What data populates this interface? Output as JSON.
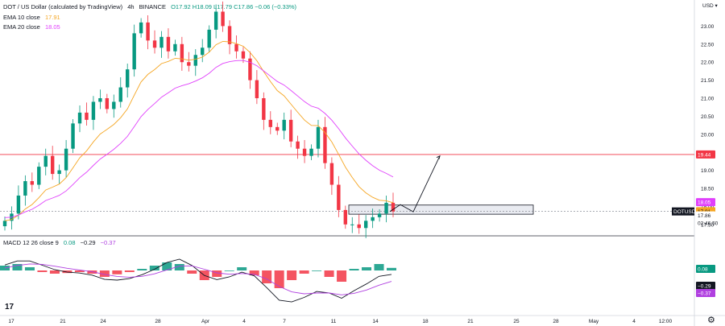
{
  "header": {
    "symbol": "DOT / US Dollar (calculated by TradingView)",
    "interval": "4h",
    "exchange": "BINANCE",
    "ohlc": "O17.92 H18.09 L17.79 C17.86 −0.06 (−0.33%)"
  },
  "indicators": {
    "ema10": {
      "label": "EMA 10 close",
      "value": "17.91",
      "color": "#f5a623"
    },
    "ema20": {
      "label": "EMA 20 close",
      "value": "18.05",
      "color": "#e040fb"
    },
    "macd": {
      "label": "MACD 12 26 close 9",
      "v1": "0.08",
      "v2": "−0.29",
      "v3": "−0.37"
    }
  },
  "currency": "USD",
  "price_axis": [
    "23.00",
    "22.50",
    "22.00",
    "21.50",
    "21.00",
    "20.50",
    "20.00",
    "19.50",
    "19.00",
    "18.50",
    "18.00",
    "17.50"
  ],
  "time_axis": [
    "17",
    "21",
    "24",
    "28",
    "Apr",
    "4",
    "7",
    "11",
    "14",
    "18",
    "21",
    "25",
    "28",
    "May",
    "4",
    "12:00"
  ],
  "tags": {
    "level": "19.44",
    "ema20": "18.05",
    "ema10": "17.91",
    "symbol_tag": "DOTUSD",
    "last_price": "17.86",
    "countdown": "02:46:50",
    "macd_hist": "0.08",
    "macd_line": "−0.29",
    "signal_line": "−0.37"
  },
  "colors": {
    "up": "#089981",
    "down": "#f23645",
    "ema10": "#f5a623",
    "ema20": "#e040fb",
    "level": "#f23645",
    "macd": "#131722",
    "signal": "#b040e0"
  },
  "chart_data": [
    {
      "type": "candlestick",
      "title": "DOT / US Dollar",
      "interval": "4h",
      "y_range": [
        17.25,
        23.5
      ],
      "x_range": [
        "Mar 17",
        "May 4"
      ],
      "ohlc_close_series_approx": [
        17.6,
        17.8,
        18.3,
        18.7,
        18.6,
        19.1,
        19.4,
        18.9,
        19.0,
        19.6,
        20.3,
        20.6,
        20.4,
        20.9,
        21.0,
        20.7,
        20.9,
        21.3,
        21.8,
        22.8,
        23.1,
        22.6,
        22.4,
        22.7,
        22.3,
        22.5,
        22.0,
        21.9,
        22.2,
        22.4,
        22.9,
        23.4,
        23.0,
        22.5,
        22.3,
        22.1,
        21.5,
        21.0,
        20.4,
        20.2,
        20.1,
        20.4,
        19.8,
        19.6,
        19.4,
        19.6,
        20.2,
        19.2,
        18.6,
        17.9,
        17.5,
        17.5,
        17.4,
        17.6,
        17.7,
        17.8,
        18.1,
        17.86
      ],
      "annotations": {
        "horizontal_level": 19.44,
        "support_zone": [
          17.85,
          17.97
        ],
        "projected_path": [
          17.86,
          18.05,
          17.85,
          19.4
        ]
      },
      "last_close": 17.86,
      "ema10_last": 17.91,
      "ema20_last": 18.05
    },
    {
      "type": "macd",
      "name": "MACD 12 26 close 9",
      "last_histogram": 0.08,
      "last_macd": -0.29,
      "last_signal": -0.37,
      "histogram_series_approx": [
        0.15,
        0.2,
        0.1,
        -0.05,
        -0.1,
        -0.08,
        -0.05,
        -0.1,
        -0.2,
        -0.12,
        -0.05,
        0.05,
        0.15,
        0.25,
        0.2,
        -0.1,
        -0.3,
        -0.2,
        0.0,
        0.1,
        -0.15,
        -0.4,
        -0.55,
        -0.3,
        -0.1,
        0.0,
        -0.2,
        -0.35,
        0.05,
        0.1,
        0.2,
        0.08
      ]
    }
  ]
}
